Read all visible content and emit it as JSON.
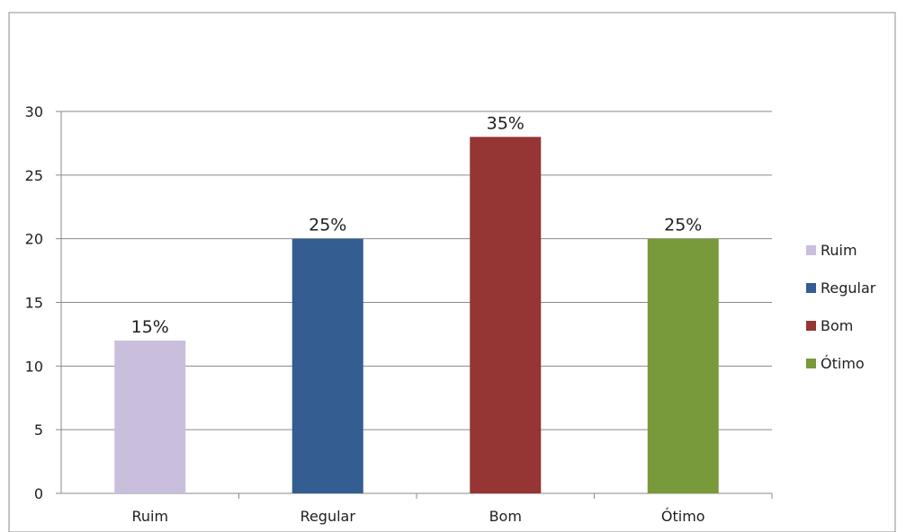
{
  "chart_data": {
    "type": "bar",
    "title": "",
    "xlabel": "",
    "ylabel": "",
    "categories": [
      "Ruim",
      "Regular",
      "Bom",
      "Ótimo"
    ],
    "values": [
      12,
      20,
      28,
      20
    ],
    "data_labels": [
      "15%",
      "25%",
      "35%",
      "25%"
    ],
    "colors": [
      "#c9bedc",
      "#345d92",
      "#953534",
      "#789a3a"
    ],
    "ylim": [
      0,
      30
    ],
    "yticks": [
      0,
      5,
      10,
      15,
      20,
      25,
      30
    ],
    "grid": true,
    "legend": {
      "placement": "right",
      "entries": [
        "Ruim",
        "Regular",
        "Bom",
        "Ótimo"
      ]
    }
  }
}
